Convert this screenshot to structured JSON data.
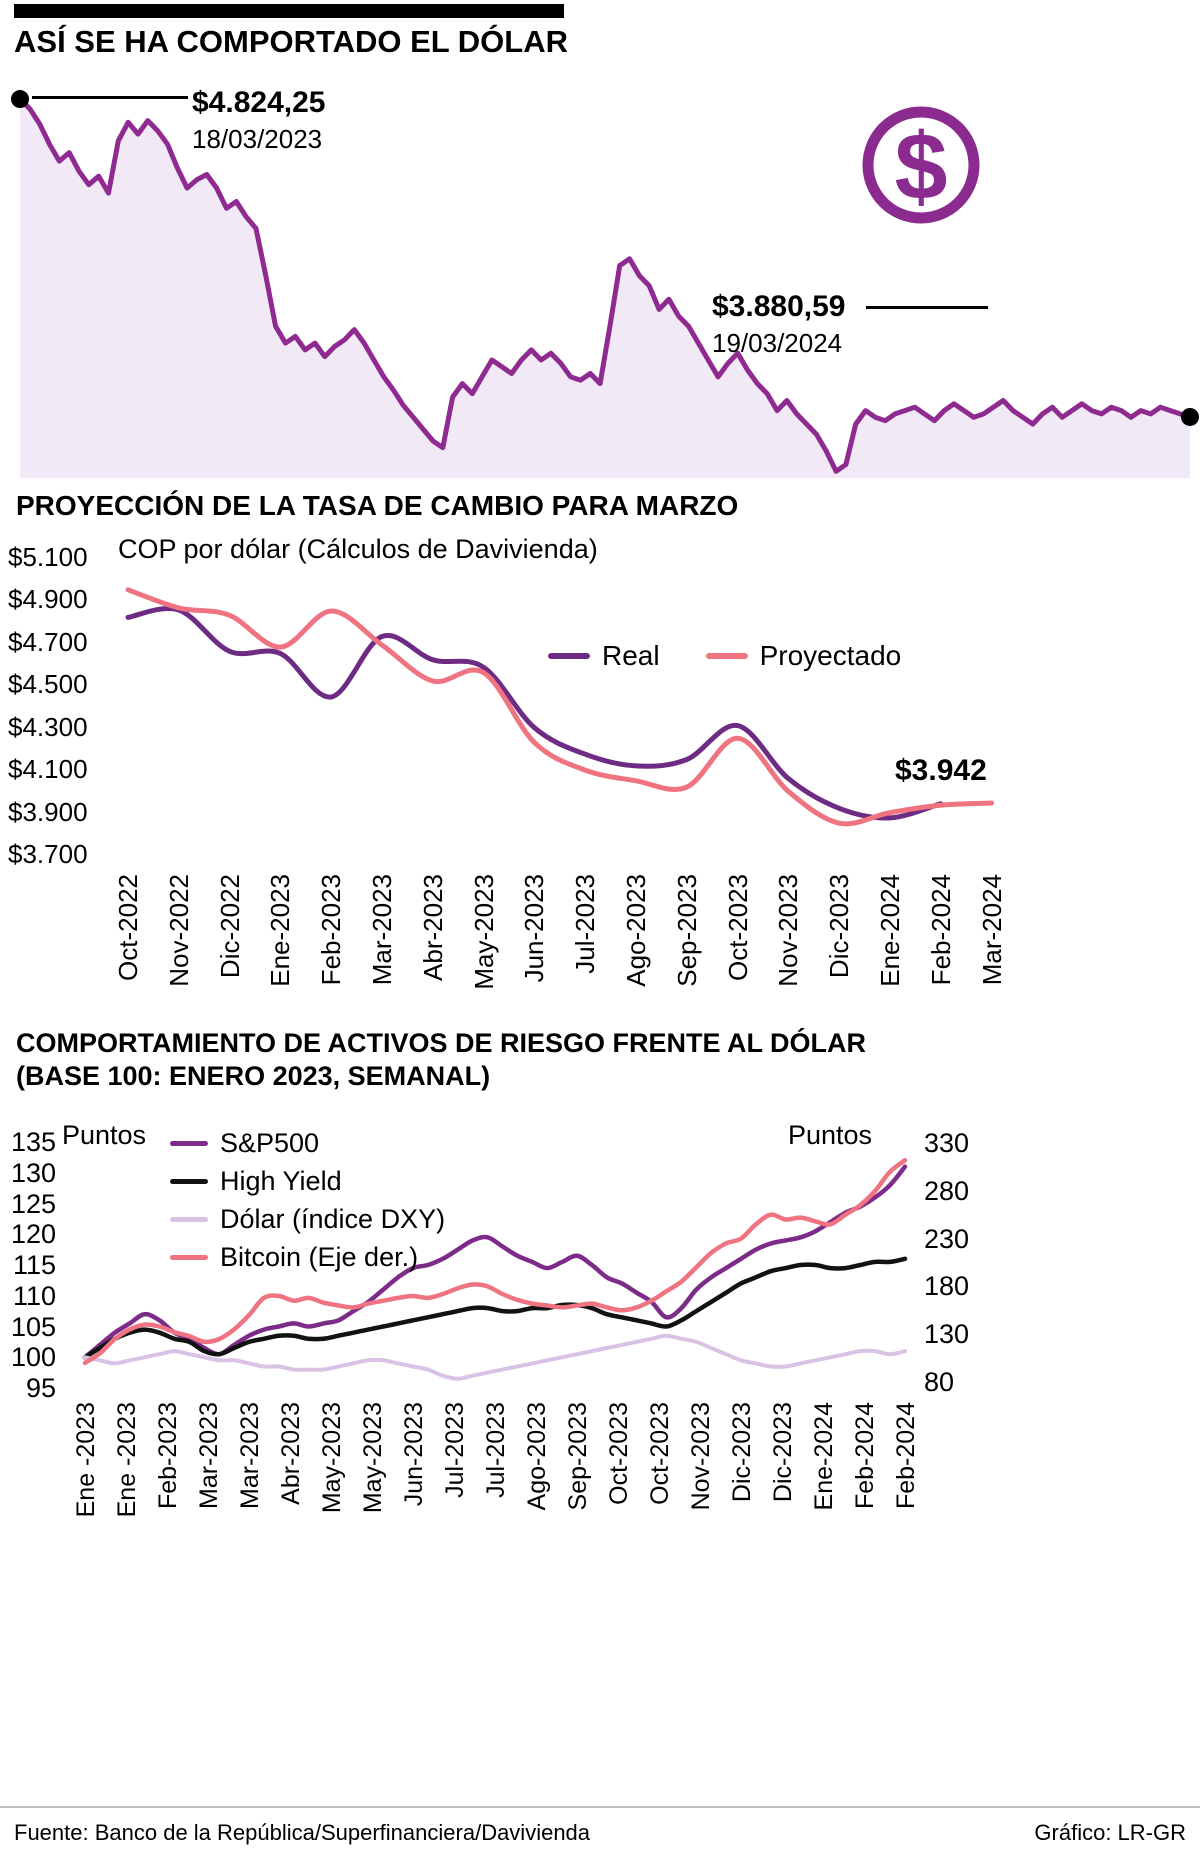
{
  "header": {
    "title": "ASÍ SE HA COMPORTADO EL DÓLAR"
  },
  "icons": {
    "dollar_glyph": "$",
    "dollar_icon_color": "#8B2A8F"
  },
  "colors": {
    "chart1_line": "#8E2A90",
    "area_fill": "#F2E9F6",
    "real": "#6E2B84",
    "proyectado": "#EF7380",
    "sp500": "#7C2B88",
    "high_yield": "#121212",
    "dxy": "#D9C2E4",
    "bitcoin": "#EF7380",
    "annotation_black": "#000000"
  },
  "chart_data": [
    {
      "name": "dolar-historico",
      "type": "area",
      "title": "ASÍ SE HA COMPORTADO EL DÓLAR",
      "start_label": {
        "value": "$4.824,25",
        "date": "18/03/2023"
      },
      "end_label": {
        "value": "$3.880,59",
        "date": "19/03/2024"
      },
      "ylim": [
        3700,
        4830
      ],
      "values": [
        4824,
        4795,
        4750,
        4690,
        4640,
        4665,
        4610,
        4570,
        4595,
        4545,
        4700,
        4755,
        4720,
        4760,
        4730,
        4690,
        4620,
        4560,
        4585,
        4600,
        4560,
        4500,
        4520,
        4475,
        4440,
        4300,
        4150,
        4100,
        4120,
        4080,
        4100,
        4060,
        4090,
        4110,
        4140,
        4100,
        4050,
        4000,
        3960,
        3915,
        3880,
        3845,
        3810,
        3790,
        3940,
        3980,
        3950,
        4000,
        4050,
        4030,
        4010,
        4050,
        4080,
        4050,
        4070,
        4040,
        4000,
        3990,
        4010,
        3980,
        4150,
        4330,
        4350,
        4300,
        4270,
        4200,
        4230,
        4180,
        4150,
        4100,
        4050,
        4000,
        4040,
        4070,
        4020,
        3980,
        3950,
        3900,
        3930,
        3890,
        3860,
        3830,
        3780,
        3720,
        3740,
        3860,
        3900,
        3880,
        3870,
        3890,
        3900,
        3910,
        3890,
        3870,
        3900,
        3920,
        3900,
        3880,
        3890,
        3910,
        3930,
        3900,
        3880,
        3860,
        3890,
        3910,
        3880,
        3900,
        3920,
        3900,
        3890,
        3910,
        3900,
        3880,
        3900,
        3890,
        3910,
        3900,
        3890,
        3881
      ]
    },
    {
      "name": "proyeccion-tasa-cambio",
      "type": "line",
      "title": "PROYECCIÓN DE LA TASA DE CAMBIO PARA MARZO",
      "subtitle": "COP por dólar (Cálculos de Davivienda)",
      "annotation": "$3.942",
      "ylim": [
        3700,
        5100
      ],
      "yticks": [
        5100,
        4900,
        4700,
        4500,
        4300,
        4100,
        3900,
        3700
      ],
      "ylabels": [
        "$5.100",
        "$4.900",
        "$4.700",
        "$4.500",
        "$4.300",
        "$4.100",
        "$3.900",
        "$3.700"
      ],
      "categories": [
        "Oct-2022",
        "Nov-2022",
        "Dic-2022",
        "Ene-2023",
        "Feb-2023",
        "Mar-2023",
        "Abr-2023",
        "May-2023",
        "Jun-2023",
        "Jul-2023",
        "Ago-2023",
        "Sep-2023",
        "Oct-2023",
        "Nov-2023",
        "Dic-2023",
        "Ene-2024",
        "Feb-2024",
        "Mar-2024"
      ],
      "series": [
        {
          "name": "Real",
          "color": "#6E2B84",
          "values": [
            4820,
            4855,
            4660,
            4650,
            4445,
            4730,
            4620,
            4585,
            4300,
            4175,
            4120,
            4150,
            4310,
            4060,
            3920,
            3875,
            3942
          ]
        },
        {
          "name": "Proyectado",
          "color": "#EF7380",
          "values": [
            4950,
            4865,
            4830,
            4680,
            4850,
            4690,
            4520,
            4560,
            4230,
            4100,
            4050,
            4020,
            4250,
            4000,
            3850,
            3900,
            3935,
            3945
          ]
        }
      ]
    },
    {
      "name": "activos-riesgo-vs-dolar",
      "type": "line",
      "title": "COMPORTAMIENTO DE ACTIVOS DE RIESGO FRENTE AL DÓLAR",
      "title2": "(BASE 100: ENERO 2023, SEMANAL)",
      "left_axis": {
        "label": "Puntos",
        "ticks": [
          135,
          130,
          125,
          120,
          115,
          110,
          105,
          100,
          95
        ],
        "ylim": [
          95,
          135
        ]
      },
      "right_axis": {
        "label": "Puntos",
        "ticks": [
          330,
          280,
          230,
          180,
          130,
          80
        ],
        "ylim": [
          80,
          330
        ]
      },
      "categories": [
        "Ene -2023",
        "Ene -2023",
        "Feb-2023",
        "Mar-2023",
        "Mar-2023",
        "Abr-2023",
        "May-2023",
        "May-2023",
        "Jun-2023",
        "Jul-2023",
        "Jul-2023",
        "Ago-2023",
        "Sep-2023",
        "Oct-2023",
        "Oct-2023",
        "Nov-2023",
        "Dic-2023",
        "Dic-2023",
        "Ene-2024",
        "Feb-2024",
        "Feb-2024"
      ],
      "series": [
        {
          "name": "S&P500",
          "axis": "left",
          "color": "#7C2B88",
          "values": [
            100,
            102,
            104,
            105.5,
            107,
            106,
            104,
            103,
            101.5,
            100.5,
            102,
            103.5,
            104.5,
            105,
            105.5,
            105,
            105.5,
            106,
            107.5,
            109,
            111,
            113,
            114.5,
            115,
            116,
            117.5,
            119,
            119.5,
            118,
            116.5,
            115.5,
            114.5,
            115.5,
            116.5,
            115,
            113,
            112,
            110.5,
            109,
            106.5,
            108,
            111,
            113,
            114.5,
            116,
            117.5,
            118.5,
            119,
            119.5,
            120.5,
            122,
            123.5,
            124.5,
            126,
            128,
            131
          ]
        },
        {
          "name": "High Yield",
          "axis": "left",
          "color": "#121212",
          "values": [
            100,
            101.5,
            103,
            104,
            104.5,
            104,
            103,
            102.5,
            101,
            100.5,
            101.5,
            102.5,
            103,
            103.5,
            103.5,
            103,
            103,
            103.5,
            104,
            104.5,
            105,
            105.5,
            106,
            106.5,
            107,
            107.5,
            108,
            108,
            107.5,
            107.5,
            108,
            108,
            108.5,
            108.5,
            108,
            107,
            106.5,
            106,
            105.5,
            105,
            106,
            107.5,
            109,
            110.5,
            112,
            113,
            114,
            114.5,
            115,
            115,
            114.5,
            114.5,
            115,
            115.5,
            115.5,
            116
          ]
        },
        {
          "name": "Dólar (índice DXY)",
          "axis": "left",
          "color": "#D9C2E4",
          "values": [
            100,
            99.5,
            99,
            99.5,
            100,
            100.5,
            101,
            100.5,
            100,
            99.5,
            99.5,
            99,
            98.5,
            98.5,
            98,
            98,
            98,
            98.5,
            99,
            99.5,
            99.5,
            99,
            98.5,
            98,
            97,
            96.5,
            97,
            97.5,
            98,
            98.5,
            99,
            99.5,
            100,
            100.5,
            101,
            101.5,
            102,
            102.5,
            103,
            103.5,
            103,
            102.5,
            101.5,
            100.5,
            99.5,
            99,
            98.5,
            98.5,
            99,
            99.5,
            100,
            100.5,
            101,
            101,
            100.5,
            101
          ]
        },
        {
          "name": "Bitcoin (Eje der.)",
          "axis": "right",
          "color": "#EF7380",
          "values": [
            100,
            110,
            125,
            135,
            140,
            138,
            132,
            128,
            122,
            125,
            135,
            150,
            168,
            170,
            165,
            168,
            163,
            160,
            158,
            162,
            165,
            168,
            170,
            168,
            172,
            178,
            182,
            180,
            172,
            166,
            162,
            160,
            158,
            160,
            162,
            158,
            155,
            158,
            165,
            175,
            185,
            200,
            215,
            225,
            230,
            245,
            255,
            250,
            252,
            248,
            245,
            255,
            265,
            280,
            300,
            312
          ]
        }
      ]
    }
  ],
  "footer": {
    "source": "Fuente: Banco de la República/Superfinanciera/Davivienda",
    "credit": "Gráfico: LR-GR"
  }
}
